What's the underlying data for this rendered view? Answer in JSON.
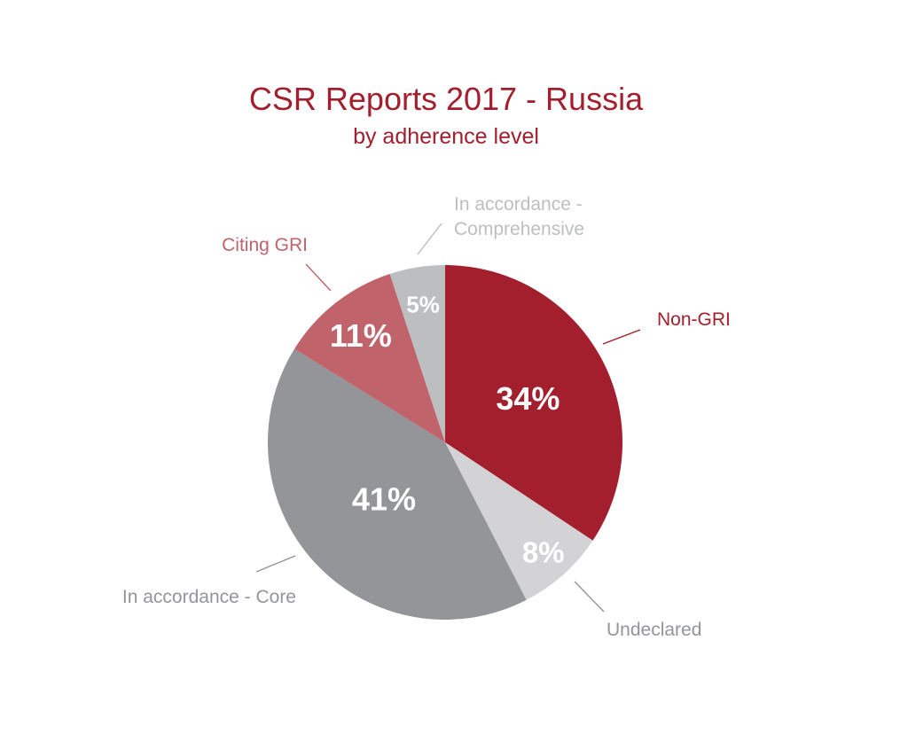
{
  "chart_data": {
    "type": "pie",
    "title": "CSR Reports 2017 - Russia",
    "subtitle": "by adherence level",
    "start_angle_deg": 0,
    "direction": "clockwise",
    "slices": [
      {
        "label": "Non-GRI",
        "value": 34,
        "display": "34%",
        "color": "#a31f2e",
        "label_color": "#a31f2e"
      },
      {
        "label": "Undeclared",
        "value": 8,
        "display": "8%",
        "color": "#d3d3d5",
        "label_color": "#939598"
      },
      {
        "label": "In accordance - Core",
        "value": 41,
        "display": "41%",
        "color": "#939598",
        "label_color": "#939598"
      },
      {
        "label": "Citing GRI",
        "value": 11,
        "display": "11%",
        "color": "#c0636b",
        "label_color": "#c0636b"
      },
      {
        "label": "In accordance - Comprehensive",
        "label_lines": [
          "In accordance -",
          "Comprehensive"
        ],
        "value": 5,
        "display": "5%",
        "color": "#bcbec0",
        "label_color": "#bcbec0"
      }
    ],
    "legend": "none"
  }
}
